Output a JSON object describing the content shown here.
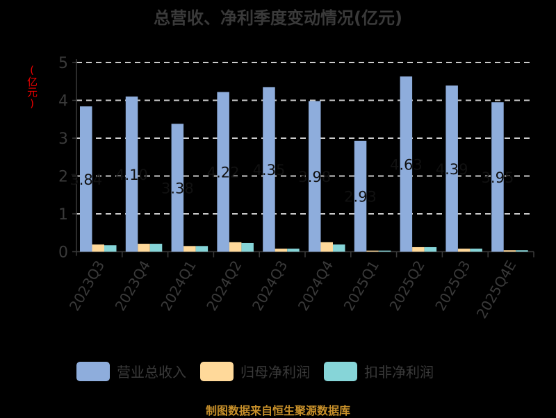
{
  "title": "总营收、净利季度变动情况(亿元)",
  "y_unit_label": "(亿元)",
  "footer": "制图数据来自恒生聚源数据库",
  "colors": {
    "revenue": "#8eaddc",
    "net_profit": "#ffd99a",
    "deducted_net_profit": "#86d5d8",
    "axis": "#3a3a3a",
    "grid": "#cccccc",
    "y_unit": "#e00000",
    "footer": "#c8902a"
  },
  "legend": [
    {
      "label": "营业总收入",
      "color": "#8eaddc"
    },
    {
      "label": "归母净利润",
      "color": "#ffd99a"
    },
    {
      "label": "扣非净利润",
      "color": "#86d5d8"
    }
  ],
  "chart_data": {
    "type": "bar",
    "title": "总营收、净利季度变动情况(亿元)",
    "xlabel": "",
    "ylabel": "(亿元)",
    "ylim": [
      0,
      5
    ],
    "yticks": [
      0,
      1,
      2,
      3,
      4,
      5
    ],
    "grid": true,
    "legend_position": "bottom",
    "categories": [
      "2023Q3",
      "2023Q4",
      "2024Q1",
      "2024Q2",
      "2024Q3",
      "2024Q4",
      "2025Q1",
      "2025Q2",
      "2025Q3",
      "2025Q4E"
    ],
    "series": [
      {
        "name": "营业总收入",
        "values": [
          3.84,
          4.1,
          3.38,
          4.22,
          4.35,
          3.98,
          2.93,
          4.63,
          4.39,
          3.95
        ],
        "labels": [
          "3.84",
          "4.10",
          "3.38",
          "4.22",
          "4.35",
          "3.98",
          "2.93",
          "4.63",
          "4.39",
          "3.95"
        ]
      },
      {
        "name": "归母净利润",
        "values": [
          0.19,
          0.21,
          0.15,
          0.25,
          0.08,
          0.25,
          0.03,
          0.12,
          0.08,
          0.04
        ]
      },
      {
        "name": "扣非净利润",
        "values": [
          0.17,
          0.21,
          0.15,
          0.23,
          0.08,
          0.19,
          0.03,
          0.12,
          0.08,
          0.04
        ]
      }
    ]
  }
}
